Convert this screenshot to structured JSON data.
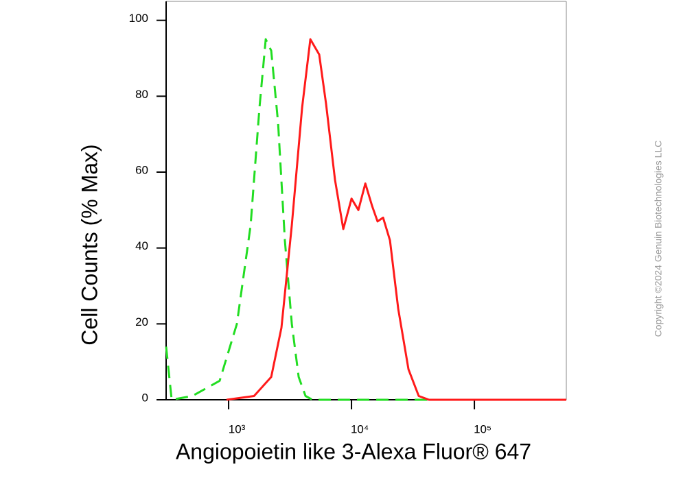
{
  "chart_data": {
    "type": "line",
    "x_label": "Angiopoietin like 3-Alexa Fluor® 647",
    "y_label": "Cell Counts (% Max)",
    "copyright": "Copyright ©2024 Genuin Biotechnologies LLC",
    "xscale": "log",
    "xlim": [
      310,
      560000
    ],
    "ylim": [
      0,
      105
    ],
    "xticks": [
      {
        "value": 1000,
        "label": "10³"
      },
      {
        "value": 10000,
        "label": "10⁴"
      },
      {
        "value": 100000,
        "label": "10⁵"
      }
    ],
    "yticks": [
      0,
      20,
      40,
      60,
      80,
      100
    ],
    "series": [
      {
        "color": "#22dd22",
        "dash": true,
        "x": [
          310,
          344,
          506,
          846,
          1167,
          1510,
          1783,
          2004,
          2220,
          2525,
          2871,
          3266,
          3715,
          4227,
          4808,
          560000
        ],
        "values": [
          14,
          0,
          1,
          5,
          20,
          46,
          77,
          95,
          92,
          73,
          42,
          20,
          6,
          1,
          0,
          0
        ]
      },
      {
        "color": "#ff1a1a",
        "dash": false,
        "x": [
          962,
          1610,
          2220,
          2692,
          3266,
          3963,
          4626,
          5459,
          6209,
          7339,
          8570,
          10000,
          11380,
          12950,
          14730,
          16300,
          18090,
          20570,
          23990,
          29090,
          35250,
          42760,
          560000
        ],
        "values": [
          0,
          1,
          6,
          19,
          46,
          77,
          95,
          91,
          78,
          58,
          45,
          53,
          50,
          57,
          51,
          47,
          48,
          42,
          24,
          8,
          1,
          0,
          0
        ]
      }
    ]
  }
}
